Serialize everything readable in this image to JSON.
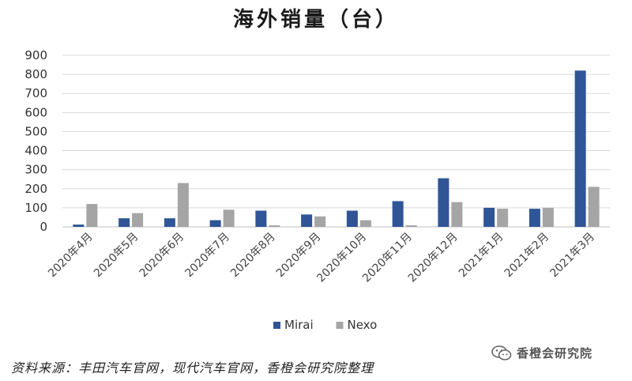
{
  "chart_data": {
    "type": "bar",
    "title": "海外销量（台）",
    "categories": [
      "2020年4月",
      "2020年5月",
      "2020年6月",
      "2020年7月",
      "2020年8月",
      "2020年9月",
      "2020年10月",
      "2020年11月",
      "2020年12月",
      "2021年1月",
      "2021年2月",
      "2021年3月"
    ],
    "series": [
      {
        "name": "Mirai",
        "color": "#2f5597",
        "values": [
          12,
          45,
          45,
          35,
          85,
          65,
          85,
          135,
          255,
          100,
          95,
          820
        ]
      },
      {
        "name": "Nexo",
        "color": "#a5a5a5",
        "values": [
          120,
          72,
          230,
          90,
          8,
          55,
          35,
          8,
          130,
          95,
          100,
          210
        ]
      }
    ],
    "yticks": [
      0,
      100,
      200,
      300,
      400,
      500,
      600,
      700,
      800,
      900
    ],
    "ylim": [
      0,
      900
    ],
    "grid": true,
    "legend": "bottom-center"
  },
  "source_note": "资料来源：丰田汽车官网，现代汽车官网，香橙会研究院整理",
  "watermark": {
    "text": "香橙会研究院",
    "icon": "wechat-icon"
  }
}
